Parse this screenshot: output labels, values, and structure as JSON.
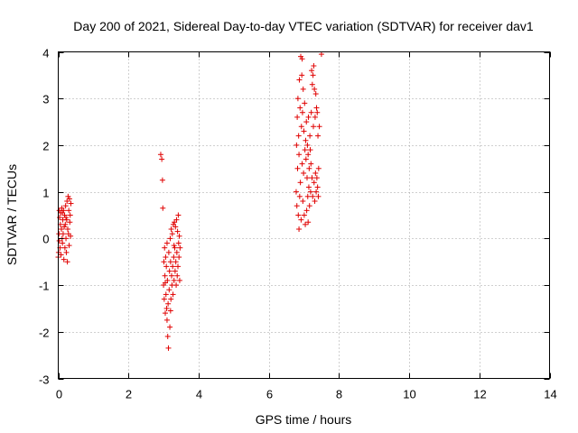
{
  "chart_data": {
    "type": "scatter",
    "title": "Day 200 of 2021, Sidereal Day-to-day VTEC variation (SDTVAR) for receiver dav1",
    "xlabel": "GPS time / hours",
    "ylabel": "SDTVAR / TECUs",
    "xlim": [
      0,
      14
    ],
    "ylim": [
      -3,
      4
    ],
    "x_ticks": [
      0,
      2,
      4,
      6,
      8,
      10,
      12,
      14
    ],
    "y_ticks": [
      -3,
      -2,
      -1,
      0,
      1,
      2,
      3,
      4
    ],
    "x_tick_labels": [
      "0",
      "2",
      "4",
      "6",
      "8",
      "10",
      "12",
      "14"
    ],
    "y_tick_labels": [
      "-3",
      "-2",
      "-1",
      "0",
      "1",
      "2",
      "3",
      "4"
    ],
    "grid": true,
    "marker": "+",
    "color": "#e00000",
    "series": [
      {
        "name": "SDTVAR",
        "points": [
          [
            0.0,
            -0.4
          ],
          [
            0.01,
            -0.3
          ],
          [
            0.02,
            0.1
          ],
          [
            0.03,
            0.6
          ],
          [
            0.04,
            0.45
          ],
          [
            0.05,
            -0.2
          ],
          [
            0.06,
            0.3
          ],
          [
            0.07,
            0.55
          ],
          [
            0.08,
            -0.35
          ],
          [
            0.09,
            0.2
          ],
          [
            0.1,
            0.65
          ],
          [
            0.11,
            0.0
          ],
          [
            0.12,
            -0.1
          ],
          [
            0.13,
            0.4
          ],
          [
            0.14,
            0.1
          ],
          [
            0.15,
            0.6
          ],
          [
            0.16,
            -0.45
          ],
          [
            0.17,
            0.25
          ],
          [
            0.18,
            0.5
          ],
          [
            0.19,
            -0.2
          ],
          [
            0.2,
            0.3
          ],
          [
            0.21,
            0.7
          ],
          [
            0.22,
            0.0
          ],
          [
            0.23,
            -0.3
          ],
          [
            0.24,
            0.4
          ],
          [
            0.25,
            0.8
          ],
          [
            0.26,
            -0.5
          ],
          [
            0.27,
            0.2
          ],
          [
            0.28,
            0.9
          ],
          [
            0.29,
            0.1
          ],
          [
            0.3,
            0.6
          ],
          [
            0.31,
            -0.15
          ],
          [
            0.32,
            0.85
          ],
          [
            0.33,
            0.35
          ],
          [
            0.34,
            0.5
          ],
          [
            0.35,
            0.05
          ],
          [
            0.36,
            0.75
          ],
          [
            0.03,
            -0.05
          ],
          [
            0.12,
            0.55
          ],
          [
            0.22,
            0.45
          ],
          [
            2.92,
            1.8
          ],
          [
            2.95,
            1.7
          ],
          [
            2.97,
            1.25
          ],
          [
            2.98,
            0.65
          ],
          [
            3.0,
            -1.0
          ],
          [
            3.01,
            -0.5
          ],
          [
            3.02,
            -1.3
          ],
          [
            3.03,
            -0.2
          ],
          [
            3.04,
            -0.8
          ],
          [
            3.05,
            -1.6
          ],
          [
            3.06,
            -0.4
          ],
          [
            3.07,
            -1.2
          ],
          [
            3.08,
            -0.6
          ],
          [
            3.09,
            -1.5
          ],
          [
            3.1,
            -0.1
          ],
          [
            3.11,
            -0.9
          ],
          [
            3.12,
            -2.1
          ],
          [
            3.13,
            -1.4
          ],
          [
            3.14,
            -2.35
          ],
          [
            3.15,
            -0.3
          ],
          [
            3.16,
            -1.1
          ],
          [
            3.17,
            -0.7
          ],
          [
            3.18,
            -1.9
          ],
          [
            3.19,
            0.0
          ],
          [
            3.2,
            -0.5
          ],
          [
            3.21,
            -1.3
          ],
          [
            3.22,
            0.2
          ],
          [
            3.23,
            -0.8
          ],
          [
            3.24,
            -1.0
          ],
          [
            3.25,
            0.1
          ],
          [
            3.26,
            -0.6
          ],
          [
            3.27,
            -1.2
          ],
          [
            3.28,
            0.3
          ],
          [
            3.29,
            -0.4
          ],
          [
            3.3,
            -0.9
          ],
          [
            3.31,
            0.35
          ],
          [
            3.32,
            -0.2
          ],
          [
            3.33,
            -0.7
          ],
          [
            3.34,
            0.25
          ],
          [
            3.35,
            -0.5
          ],
          [
            3.36,
            -1.0
          ],
          [
            3.37,
            0.4
          ],
          [
            3.38,
            -0.3
          ],
          [
            3.39,
            -0.8
          ],
          [
            3.4,
            0.15
          ],
          [
            3.41,
            -0.6
          ],
          [
            3.42,
            0.5
          ],
          [
            3.43,
            -0.1
          ],
          [
            3.44,
            -0.4
          ],
          [
            3.45,
            0.05
          ],
          [
            3.46,
            -0.9
          ],
          [
            3.47,
            -0.2
          ],
          [
            3.05,
            -0.95
          ],
          [
            3.1,
            -1.75
          ],
          [
            3.2,
            -1.55
          ],
          [
            3.3,
            -0.15
          ],
          [
            6.78,
            1.0
          ],
          [
            6.79,
            2.0
          ],
          [
            6.8,
            0.7
          ],
          [
            6.81,
            2.6
          ],
          [
            6.82,
            1.5
          ],
          [
            6.83,
            3.0
          ],
          [
            6.84,
            0.5
          ],
          [
            6.85,
            2.2
          ],
          [
            6.86,
            1.8
          ],
          [
            6.87,
            3.4
          ],
          [
            6.88,
            0.9
          ],
          [
            6.89,
            2.8
          ],
          [
            6.9,
            1.2
          ],
          [
            6.91,
            3.9
          ],
          [
            6.92,
            0.4
          ],
          [
            6.93,
            2.4
          ],
          [
            6.94,
            3.5
          ],
          [
            6.95,
            1.6
          ],
          [
            6.96,
            2.7
          ],
          [
            6.97,
            0.8
          ],
          [
            6.98,
            3.2
          ],
          [
            6.99,
            1.4
          ],
          [
            7.0,
            2.3
          ],
          [
            7.01,
            0.5
          ],
          [
            7.02,
            2.9
          ],
          [
            7.03,
            1.9
          ],
          [
            7.04,
            0.3
          ],
          [
            7.05,
            2.1
          ],
          [
            7.06,
            1.7
          ],
          [
            7.07,
            2.5
          ],
          [
            7.08,
            0.6
          ],
          [
            7.09,
            1.3
          ],
          [
            7.1,
            2.0
          ],
          [
            7.11,
            0.9
          ],
          [
            7.12,
            1.8
          ],
          [
            7.13,
            2.6
          ],
          [
            7.14,
            1.1
          ],
          [
            7.15,
            1.5
          ],
          [
            7.16,
            0.7
          ],
          [
            7.17,
            2.2
          ],
          [
            7.18,
            1.9
          ],
          [
            7.19,
            1.0
          ],
          [
            7.2,
            1.6
          ],
          [
            7.21,
            2.7
          ],
          [
            7.22,
            3.6
          ],
          [
            7.23,
            1.3
          ],
          [
            7.24,
            3.3
          ],
          [
            7.25,
            0.9
          ],
          [
            7.26,
            3.5
          ],
          [
            7.27,
            2.4
          ],
          [
            7.28,
            3.7
          ],
          [
            7.29,
            1.2
          ],
          [
            7.3,
            3.2
          ],
          [
            7.31,
            0.8
          ],
          [
            7.32,
            2.6
          ],
          [
            7.33,
            1.4
          ],
          [
            7.34,
            3.1
          ],
          [
            7.35,
            1.0
          ],
          [
            7.36,
            2.8
          ],
          [
            7.37,
            1.3
          ],
          [
            7.38,
            2.7
          ],
          [
            7.39,
            1.1
          ],
          [
            7.4,
            2.2
          ],
          [
            7.41,
            0.9
          ],
          [
            7.42,
            1.5
          ],
          [
            7.44,
            2.4
          ],
          [
            7.5,
            3.95
          ],
          [
            6.86,
            0.2
          ],
          [
            6.95,
            3.85
          ],
          [
            7.12,
            0.35
          ]
        ]
      }
    ]
  }
}
